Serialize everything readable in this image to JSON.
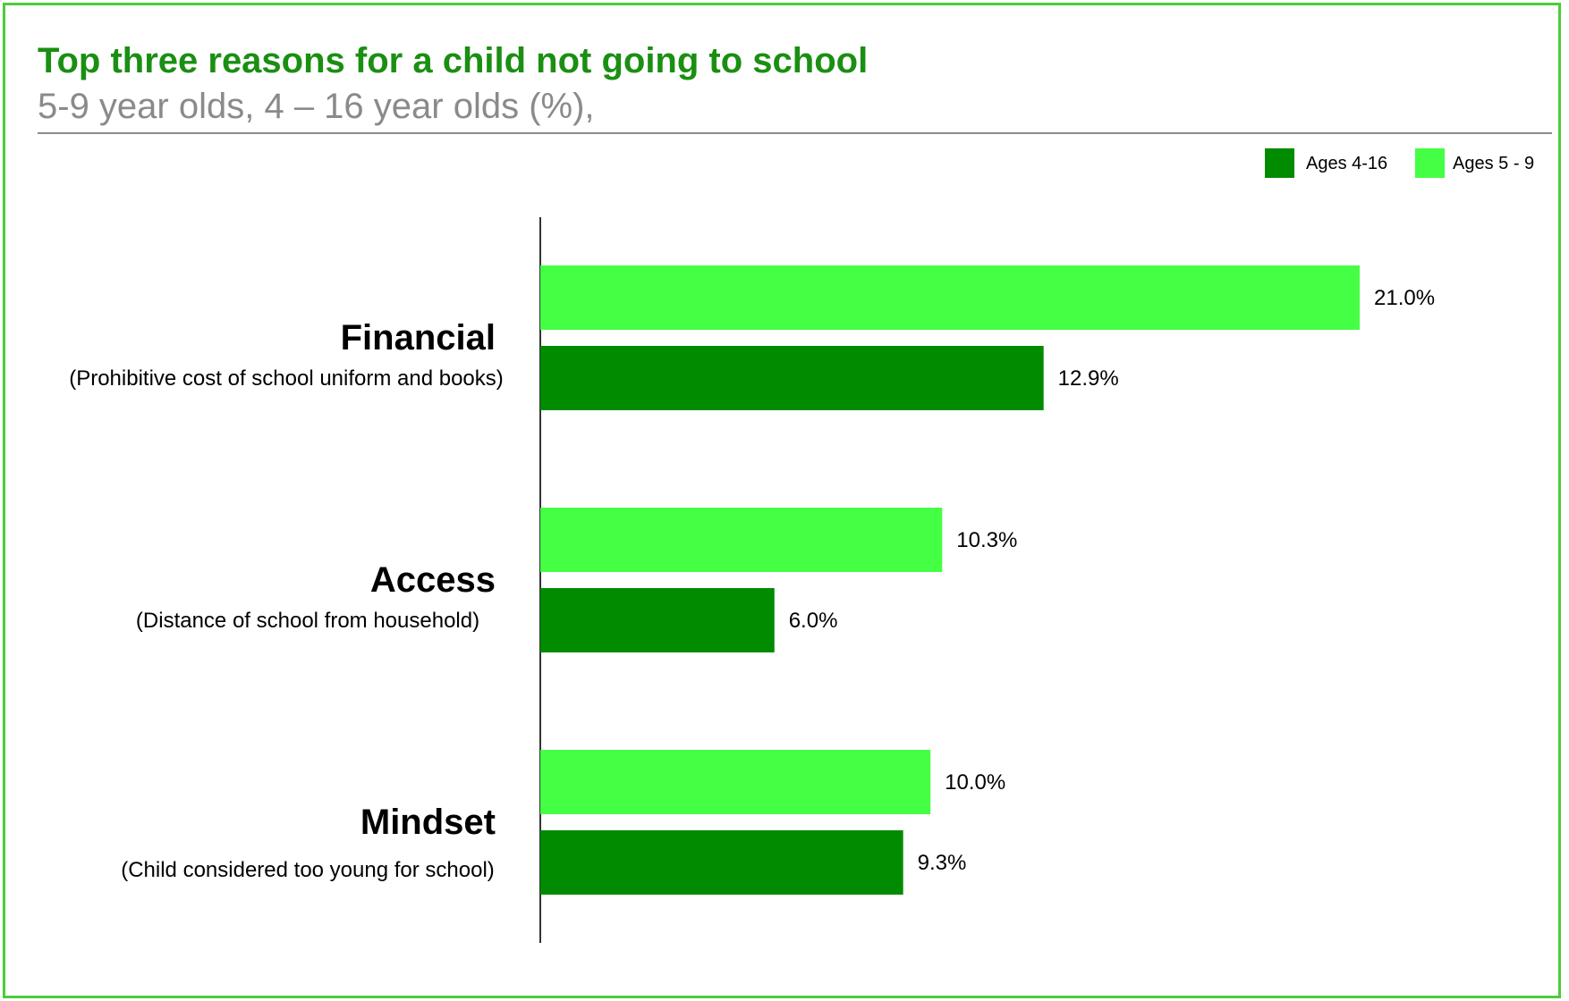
{
  "header": {
    "title": "Top three reasons for a child not going to school",
    "subtitle": "5-9 year olds, 4 – 16 year olds (%),"
  },
  "colors": {
    "frame": "#4ccc3a",
    "title": "#1a8f12",
    "ages_4_16": "#008b00",
    "ages_5_9": "#44ff44"
  },
  "legend": {
    "position": "top-right",
    "items": [
      {
        "label": "Ages 4-16",
        "color": "#008b00"
      },
      {
        "label": "Ages 5 - 9",
        "color": "#44ff44"
      }
    ]
  },
  "chart_data": {
    "type": "bar",
    "orientation": "horizontal",
    "title": "Top three reasons for a child not going to school",
    "subtitle": "5-9 year olds, 4 – 16 year olds (%),",
    "categories": [
      "Financial",
      "Access",
      "Mindset"
    ],
    "category_descriptions": [
      "(Prohibitive cost of school uniform and books)",
      "(Distance of school from household)",
      "(Child considered too young for school)"
    ],
    "series": [
      {
        "name": "Ages 5 - 9",
        "color": "#44ff44",
        "values": [
          21.0,
          10.3,
          10.0
        ],
        "labels": [
          "21.0%",
          "10.3%",
          "10.0%"
        ]
      },
      {
        "name": "Ages 4-16",
        "color": "#008b00",
        "values": [
          12.9,
          6.0,
          9.3
        ],
        "labels": [
          "12.9%",
          "6.0%",
          "9.3%"
        ]
      }
    ],
    "xlim": [
      0,
      21.0
    ],
    "grid": false,
    "legend_position": "top-right"
  }
}
